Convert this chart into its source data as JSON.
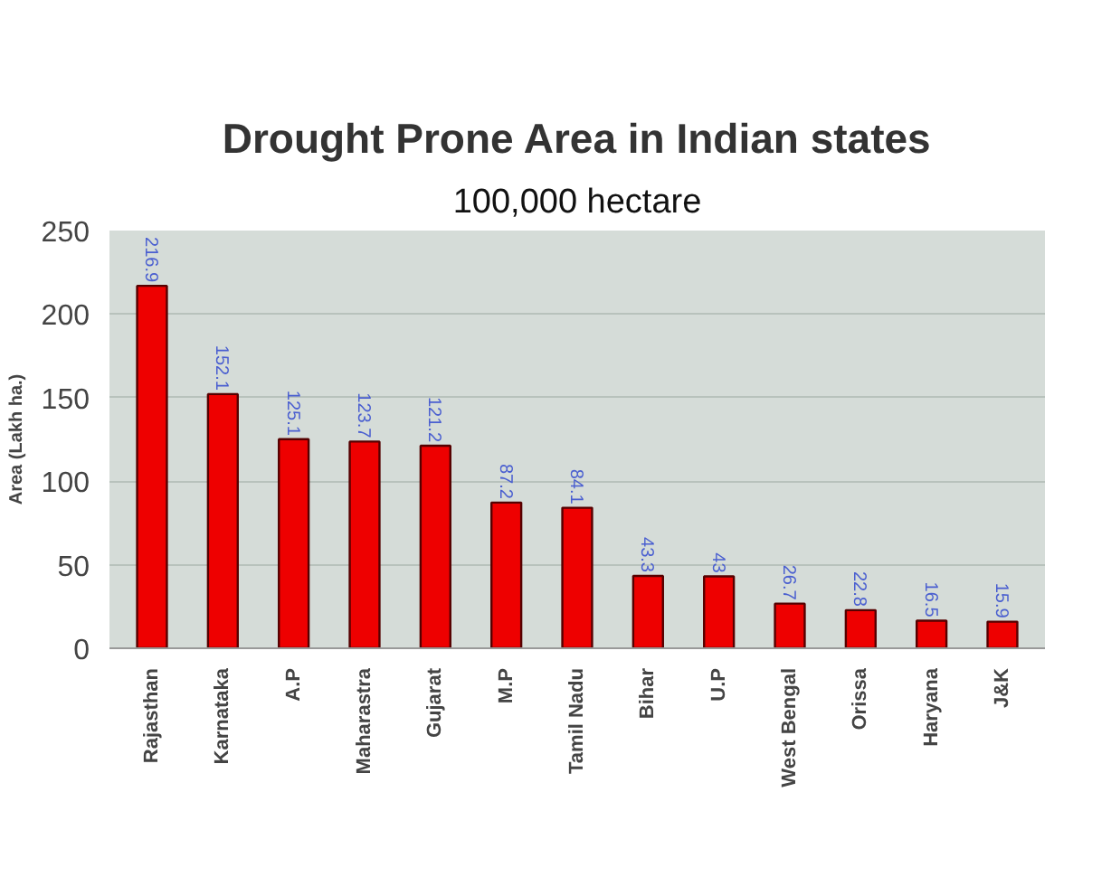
{
  "chart_data": {
    "type": "bar",
    "title": "Drought Prone Area in Indian states",
    "subtitle": "100,000 hectare",
    "ylabel": "Area (Lakh ha.)",
    "categories": [
      "Rajasthan",
      "Karnataka",
      "A.P",
      "Maharastra",
      "Gujarat",
      "M.P",
      "Tamil Nadu",
      "Bihar",
      "U.P",
      "West Bengal",
      "Orissa",
      "Haryana",
      "J&K"
    ],
    "values": [
      216.9,
      152.1,
      125.1,
      123.7,
      121.2,
      87.2,
      84.1,
      43.3,
      43,
      26.7,
      22.8,
      16.5,
      15.9
    ],
    "value_labels": [
      "216.9",
      "152.1",
      "125.1",
      "123.7",
      "121.2",
      "87.2",
      "84.1",
      "43.3",
      "43",
      "26.7",
      "22.8",
      "16.5",
      "15.9"
    ],
    "color": "#ee0000",
    "ylim": [
      0,
      250
    ],
    "yticks": [
      0,
      50,
      100,
      150,
      200,
      250
    ],
    "grid": "y"
  }
}
